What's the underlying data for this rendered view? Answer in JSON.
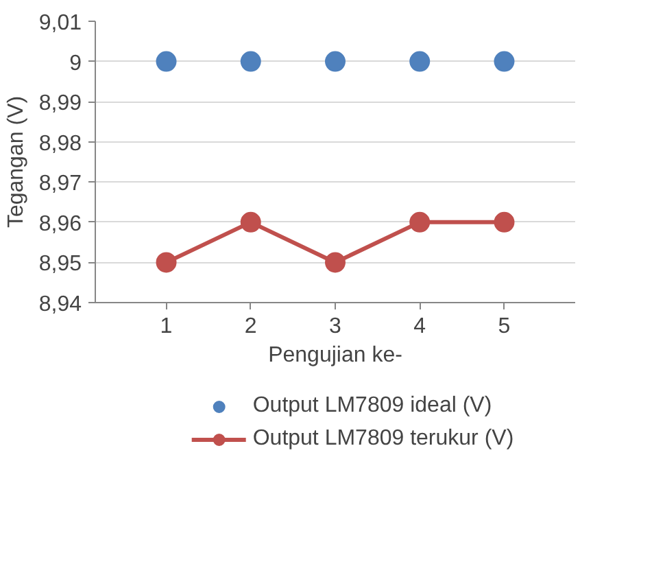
{
  "chart_data": {
    "type": "line",
    "xlabel": "Pengujian ke-",
    "ylabel": "Tegangan (V)",
    "categories": [
      "1",
      "2",
      "3",
      "4",
      "5"
    ],
    "series": [
      {
        "name": "Output LM7809 ideal (V)",
        "type": "scatter",
        "color": "#4f81bd",
        "values": [
          9,
          9,
          9,
          9,
          9
        ]
      },
      {
        "name": "Output LM7809 terukur (V)",
        "color": "#c0504d",
        "values": [
          8.95,
          8.96,
          8.95,
          8.96,
          8.96
        ]
      }
    ],
    "ylim": [
      8.94,
      9.01
    ],
    "yticks": [
      {
        "value": 8.94,
        "label": "8,94"
      },
      {
        "value": 8.95,
        "label": "8,95"
      },
      {
        "value": 8.96,
        "label": "8,96"
      },
      {
        "value": 8.97,
        "label": "8,97"
      },
      {
        "value": 8.98,
        "label": "8,98"
      },
      {
        "value": 8.99,
        "label": "8,99"
      },
      {
        "value": 9,
        "label": "9"
      },
      {
        "value": 9.01,
        "label": "9,01"
      }
    ],
    "grid": "y",
    "legend": "bottom",
    "marker": "circle",
    "line_style": "solid"
  }
}
